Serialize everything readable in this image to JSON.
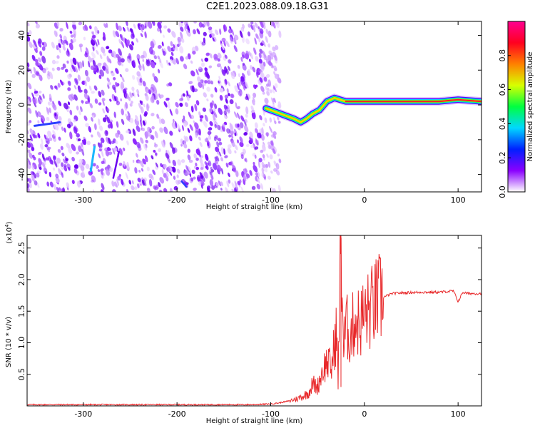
{
  "title": "C2E1.2023.088.09.18.G31",
  "chart_data": [
    {
      "type": "heatmap",
      "xlabel": "Height of straight line (km)",
      "ylabel": "Frequency (Hz)",
      "xlim": [
        -360,
        125
      ],
      "ylim": [
        -50,
        48
      ],
      "xticks": [
        -300,
        -200,
        -100,
        0,
        100
      ],
      "yticks": [
        -40,
        -20,
        0,
        20,
        40
      ],
      "colorbar": {
        "label": "Normalized spectral amplitude",
        "range": [
          0,
          1
        ],
        "ticks": [
          "0.0",
          "0.2",
          "0.4",
          "0.6",
          "0.8"
        ],
        "colors": [
          "#ffffff",
          "#8a00ff",
          "#0020ff",
          "#00d8ff",
          "#00ff40",
          "#d8ff00",
          "#ff8000",
          "#ff0020",
          "#ff0090"
        ]
      },
      "features": {
        "noise_region_x": [
          -360,
          -90
        ],
        "signal_track": [
          {
            "x": -105,
            "y": -2
          },
          {
            "x": -95,
            "y": -4
          },
          {
            "x": -85,
            "y": -6
          },
          {
            "x": -75,
            "y": -8
          },
          {
            "x": -68,
            "y": -10
          },
          {
            "x": -62,
            "y": -8
          },
          {
            "x": -55,
            "y": -5
          },
          {
            "x": -48,
            "y": -3
          },
          {
            "x": -40,
            "y": 2
          },
          {
            "x": -32,
            "y": 4
          },
          {
            "x": -20,
            "y": 2
          },
          {
            "x": 0,
            "y": 2
          },
          {
            "x": 40,
            "y": 2
          },
          {
            "x": 80,
            "y": 2
          },
          {
            "x": 100,
            "y": 3
          },
          {
            "x": 125,
            "y": 2
          }
        ]
      }
    },
    {
      "type": "line",
      "xlabel": "Height of straight line (km)",
      "ylabel": "SNR (10 * v/v)",
      "yscale_note": "(x10",
      "yscale_exp": "4",
      "xlim": [
        -360,
        125
      ],
      "ylim": [
        0,
        2.7
      ],
      "xticks": [
        -300,
        -200,
        -100,
        0,
        100
      ],
      "yticks": [
        "0.5",
        "1.0",
        "1.5",
        "2.0",
        "2.5"
      ],
      "ytick_values": [
        0.5,
        1.0,
        1.5,
        2.0,
        2.5
      ],
      "color": "#e8282a",
      "x": [
        -360,
        -300,
        -200,
        -120,
        -100,
        -90,
        -80,
        -70,
        -60,
        -55,
        -50,
        -45,
        -40,
        -35,
        -30,
        -28,
        -25,
        -22,
        -20,
        -15,
        -10,
        -5,
        0,
        5,
        10,
        15,
        20,
        25,
        30,
        40,
        60,
        80,
        95,
        100,
        105,
        110,
        125
      ],
      "y": [
        0.02,
        0.02,
        0.02,
        0.02,
        0.03,
        0.05,
        0.08,
        0.12,
        0.2,
        0.35,
        0.3,
        0.55,
        0.7,
        0.6,
        1.2,
        0.4,
        2.7,
        0.8,
        1.3,
        1.1,
        1.4,
        1.3,
        1.45,
        1.5,
        1.6,
        1.68,
        1.72,
        1.75,
        1.78,
        1.79,
        1.8,
        1.8,
        1.82,
        1.65,
        1.8,
        1.78,
        1.78
      ]
    }
  ]
}
